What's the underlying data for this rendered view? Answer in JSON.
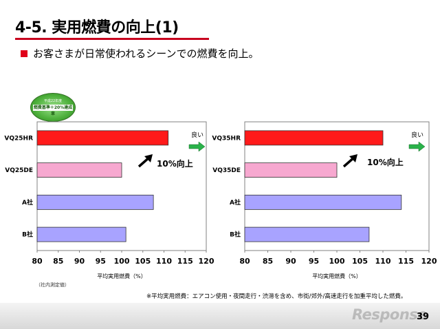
{
  "title": "4-5. 実用燃費の向上(1)",
  "bullet": "お客さまが日常使われるシーンでの燃費を向上。",
  "badge": {
    "year_text": "平成22年度",
    "main_text": "燃費基準＋20%達成車"
  },
  "note": "（社内測定値）",
  "footnote": "※平均実用燃費：エアコン使用・夜間走行・渋滞を含め、市街/郊外/高速走行を加重平均した燃費。",
  "watermark": "Response",
  "page_number": "39",
  "chart_data": [
    {
      "type": "bar",
      "orientation": "horizontal",
      "categories": [
        "VQ25HR",
        "VQ25DE",
        "A社",
        "B社"
      ],
      "values": [
        111,
        100,
        107.5,
        101
      ],
      "colors": [
        "#ff1a1a",
        "#f7a8d0",
        "#a8a3ff",
        "#a8a3ff"
      ],
      "xlabel": "平均実用燃費（%）",
      "xlim": [
        80,
        120
      ],
      "xticks": [
        80,
        85,
        90,
        95,
        100,
        105,
        110,
        115,
        120
      ],
      "annotation": "10%向上",
      "good_label": "良い"
    },
    {
      "type": "bar",
      "orientation": "horizontal",
      "categories": [
        "VQ35HR",
        "VQ35DE",
        "A社",
        "B社"
      ],
      "values": [
        110,
        100,
        114,
        107
      ],
      "colors": [
        "#ff1a1a",
        "#f7a8d0",
        "#a8a3ff",
        "#a8a3ff"
      ],
      "xlabel": "平均実用燃費（%）",
      "xlim": [
        80,
        120
      ],
      "xticks": [
        80,
        85,
        90,
        95,
        100,
        105,
        110,
        115,
        120
      ],
      "annotation": "10%向上",
      "good_label": "良い"
    }
  ]
}
